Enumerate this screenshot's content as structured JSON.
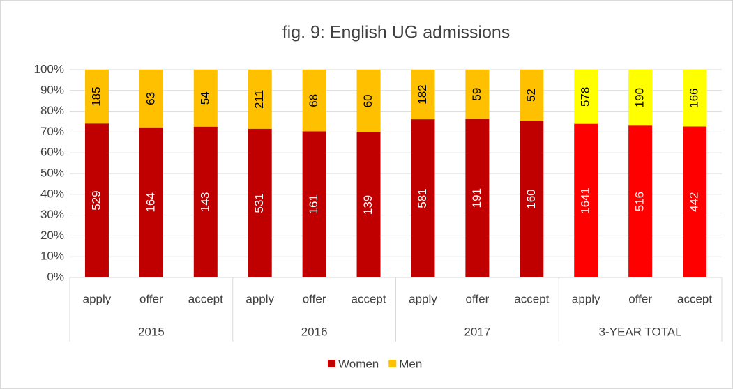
{
  "chart_data": {
    "type": "bar",
    "stacking": "percent",
    "title": "fig. 9: English UG admissions",
    "categories": [
      "apply",
      "offer",
      "accept",
      "apply",
      "offer",
      "accept",
      "apply",
      "offer",
      "accept",
      "apply",
      "offer",
      "accept"
    ],
    "groups": [
      "2015",
      "2016",
      "2017",
      "3-YEAR TOTAL"
    ],
    "series": [
      {
        "name": "Women",
        "color": "#c00000",
        "colors": [
          "#c00000",
          "#c00000",
          "#c00000",
          "#c00000",
          "#c00000",
          "#c00000",
          "#c00000",
          "#c00000",
          "#c00000",
          "#ff0000",
          "#ff0000",
          "#ff0000"
        ],
        "values": [
          529,
          164,
          143,
          531,
          161,
          139,
          581,
          191,
          160,
          1641,
          516,
          442
        ]
      },
      {
        "name": "Men",
        "color": "#ffc000",
        "colors": [
          "#ffc000",
          "#ffc000",
          "#ffc000",
          "#ffc000",
          "#ffc000",
          "#ffc000",
          "#ffc000",
          "#ffc000",
          "#ffc000",
          "#ffff00",
          "#ffff00",
          "#ffff00"
        ],
        "values": [
          185,
          63,
          54,
          211,
          68,
          60,
          182,
          59,
          52,
          578,
          190,
          166
        ]
      }
    ],
    "ylim": [
      0,
      100
    ],
    "yticks": [
      {
        "value": 0,
        "label": "0%"
      },
      {
        "value": 10,
        "label": "10%"
      },
      {
        "value": 20,
        "label": "20%"
      },
      {
        "value": 30,
        "label": "30%"
      },
      {
        "value": 40,
        "label": "40%"
      },
      {
        "value": 50,
        "label": "50%"
      },
      {
        "value": 60,
        "label": "60%"
      },
      {
        "value": 70,
        "label": "70%"
      },
      {
        "value": 80,
        "label": "80%"
      },
      {
        "value": 90,
        "label": "90%"
      },
      {
        "value": 100,
        "label": "100%"
      }
    ],
    "grid": true,
    "legend": "bottom"
  }
}
